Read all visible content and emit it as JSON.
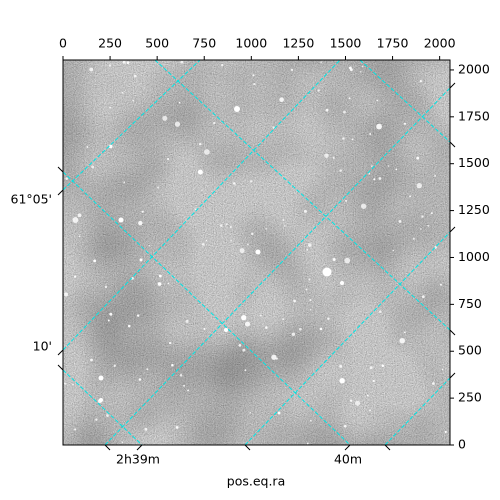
{
  "chart_data": {
    "type": "image",
    "xlabel": "pos.eq.ra",
    "xlim": [
      0,
      2055
    ],
    "ylim": [
      0,
      2053
    ],
    "xticks": [
      0,
      250,
      500,
      750,
      1000,
      1250,
      1500,
      1750,
      2000
    ],
    "yticks": [
      0,
      250,
      500,
      750,
      1000,
      1250,
      1500,
      1750,
      2000
    ],
    "ra_tick_labels": [
      "2h39m",
      "40m"
    ],
    "dec_tick_labels": [
      "61°05'",
      "10'"
    ],
    "grid_color": "#00e5e5"
  }
}
